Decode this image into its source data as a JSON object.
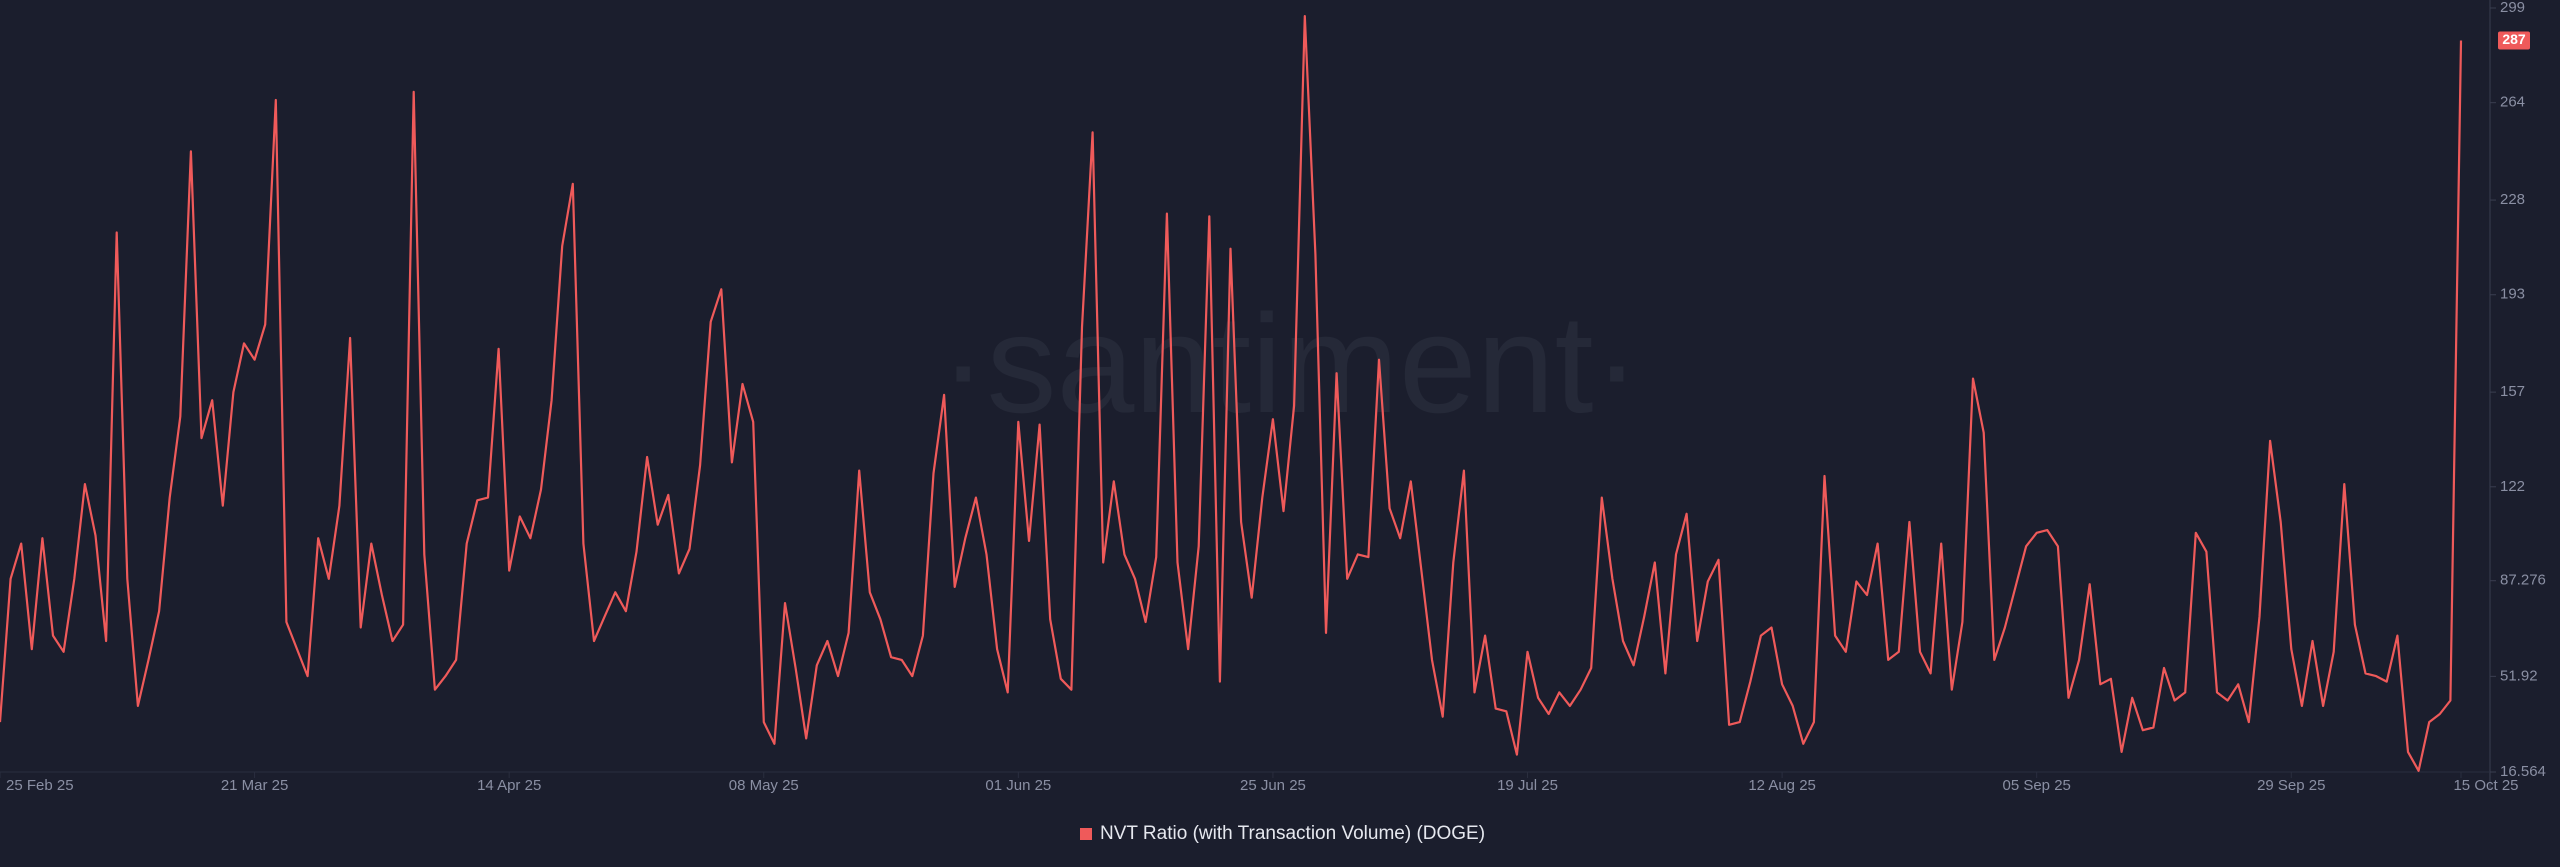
{
  "chart_data": {
    "type": "line",
    "watermark": "·santiment·",
    "xlim": [
      "2025-02-25",
      "2025-10-15"
    ],
    "xticks": [
      {
        "value": "2025-02-25",
        "label": "25 Feb 25"
      },
      {
        "value": "2025-03-21",
        "label": "21 Mar 25"
      },
      {
        "value": "2025-04-14",
        "label": "14 Apr 25"
      },
      {
        "value": "2025-05-08",
        "label": "08 May 25"
      },
      {
        "value": "2025-06-01",
        "label": "01 Jun 25"
      },
      {
        "value": "2025-06-25",
        "label": "25 Jun 25"
      },
      {
        "value": "2025-07-19",
        "label": "19 Jul 25"
      },
      {
        "value": "2025-08-12",
        "label": "12 Aug 25"
      },
      {
        "value": "2025-09-05",
        "label": "05 Sep 25"
      },
      {
        "value": "2025-09-29",
        "label": "29 Sep 25"
      },
      {
        "value": "2025-10-15",
        "label": "15 Oct 25"
      }
    ],
    "ylim": [
      16.564,
      299
    ],
    "yticks": [
      16.564,
      51.92,
      87.276,
      122,
      157,
      193,
      228,
      264,
      299
    ],
    "legend": "bottom",
    "x": [
      "2025-02-25",
      "2025-02-26",
      "2025-02-27",
      "2025-02-28",
      "2025-03-01",
      "2025-03-02",
      "2025-03-03",
      "2025-03-04",
      "2025-03-05",
      "2025-03-06",
      "2025-03-07",
      "2025-03-08",
      "2025-03-09",
      "2025-03-10",
      "2025-03-11",
      "2025-03-12",
      "2025-03-13",
      "2025-03-14",
      "2025-03-15",
      "2025-03-16",
      "2025-03-17",
      "2025-03-18",
      "2025-03-19",
      "2025-03-20",
      "2025-03-21",
      "2025-03-22",
      "2025-03-23",
      "2025-03-24",
      "2025-03-25",
      "2025-03-26",
      "2025-03-27",
      "2025-03-28",
      "2025-03-29",
      "2025-03-30",
      "2025-03-31",
      "2025-04-01",
      "2025-04-02",
      "2025-04-03",
      "2025-04-04",
      "2025-04-05",
      "2025-04-06",
      "2025-04-07",
      "2025-04-08",
      "2025-04-09",
      "2025-04-10",
      "2025-04-11",
      "2025-04-12",
      "2025-04-13",
      "2025-04-14",
      "2025-04-15",
      "2025-04-16",
      "2025-04-17",
      "2025-04-18",
      "2025-04-19",
      "2025-04-20",
      "2025-04-21",
      "2025-04-22",
      "2025-04-23",
      "2025-04-24",
      "2025-04-25",
      "2025-04-26",
      "2025-04-27",
      "2025-04-28",
      "2025-04-29",
      "2025-04-30",
      "2025-05-01",
      "2025-05-02",
      "2025-05-03",
      "2025-05-04",
      "2025-05-05",
      "2025-05-06",
      "2025-05-07",
      "2025-05-08",
      "2025-05-09",
      "2025-05-10",
      "2025-05-11",
      "2025-05-12",
      "2025-05-13",
      "2025-05-14",
      "2025-05-15",
      "2025-05-16",
      "2025-05-17",
      "2025-05-18",
      "2025-05-19",
      "2025-05-20",
      "2025-05-21",
      "2025-05-22",
      "2025-05-23",
      "2025-05-24",
      "2025-05-25",
      "2025-05-26",
      "2025-05-27",
      "2025-05-28",
      "2025-05-29",
      "2025-05-30",
      "2025-05-31",
      "2025-06-01",
      "2025-06-02",
      "2025-06-03",
      "2025-06-04",
      "2025-06-05",
      "2025-06-06",
      "2025-06-07",
      "2025-06-08",
      "2025-06-09",
      "2025-06-10",
      "2025-06-11",
      "2025-06-12",
      "2025-06-13",
      "2025-06-14",
      "2025-06-15",
      "2025-06-16",
      "2025-06-17",
      "2025-06-18",
      "2025-06-19",
      "2025-06-20",
      "2025-06-21",
      "2025-06-22",
      "2025-06-23",
      "2025-06-24",
      "2025-06-25",
      "2025-06-26",
      "2025-06-27",
      "2025-06-28",
      "2025-06-29",
      "2025-06-30",
      "2025-07-01",
      "2025-07-02",
      "2025-07-03",
      "2025-07-04",
      "2025-07-05",
      "2025-07-06",
      "2025-07-07",
      "2025-07-08",
      "2025-07-09",
      "2025-07-10",
      "2025-07-11",
      "2025-07-12",
      "2025-07-13",
      "2025-07-14",
      "2025-07-15",
      "2025-07-16",
      "2025-07-17",
      "2025-07-18",
      "2025-07-19",
      "2025-07-20",
      "2025-07-21",
      "2025-07-22",
      "2025-07-23",
      "2025-07-24",
      "2025-07-25",
      "2025-07-26",
      "2025-07-27",
      "2025-07-28",
      "2025-07-29",
      "2025-07-30",
      "2025-07-31",
      "2025-08-01",
      "2025-08-02",
      "2025-08-03",
      "2025-08-04",
      "2025-08-05",
      "2025-08-06",
      "2025-08-07",
      "2025-08-08",
      "2025-08-09",
      "2025-08-10",
      "2025-08-11",
      "2025-08-12",
      "2025-08-13",
      "2025-08-14",
      "2025-08-15",
      "2025-08-16",
      "2025-08-17",
      "2025-08-18",
      "2025-08-19",
      "2025-08-20",
      "2025-08-21",
      "2025-08-22",
      "2025-08-23",
      "2025-08-24",
      "2025-08-25",
      "2025-08-26",
      "2025-08-27",
      "2025-08-28",
      "2025-08-29",
      "2025-08-30",
      "2025-08-31",
      "2025-09-01",
      "2025-09-02",
      "2025-09-03",
      "2025-09-04",
      "2025-09-05",
      "2025-09-06",
      "2025-09-07",
      "2025-09-08",
      "2025-09-09",
      "2025-09-10",
      "2025-09-11",
      "2025-09-12",
      "2025-09-13",
      "2025-09-14",
      "2025-09-15",
      "2025-09-16",
      "2025-09-17",
      "2025-09-18",
      "2025-09-19",
      "2025-09-20",
      "2025-09-21",
      "2025-09-22",
      "2025-09-23",
      "2025-09-24",
      "2025-09-25",
      "2025-09-26",
      "2025-09-27",
      "2025-09-28",
      "2025-09-29",
      "2025-09-30",
      "2025-10-01",
      "2025-10-02",
      "2025-10-03",
      "2025-10-04",
      "2025-10-05",
      "2025-10-06",
      "2025-10-07",
      "2025-10-08",
      "2025-10-09",
      "2025-10-10",
      "2025-10-11",
      "2025-10-12",
      "2025-10-13",
      "2025-10-14",
      "2025-10-15"
    ],
    "series": [
      {
        "name": "NVT Ratio (with Transaction Volume) (DOGE)",
        "color": "#ef5a5a",
        "values": [
          35,
          88,
          101,
          62,
          103,
          67,
          61,
          88,
          123,
          104,
          65,
          216,
          88,
          41,
          58,
          76,
          118,
          148,
          246,
          140,
          154,
          115,
          157,
          175,
          169,
          182,
          265,
          72,
          62,
          52,
          103,
          88,
          115,
          177,
          70,
          101,
          82,
          65,
          71,
          268,
          97,
          47,
          52,
          58,
          101,
          117,
          118,
          173,
          91,
          111,
          103,
          121,
          154,
          211,
          234,
          101,
          65,
          74,
          83,
          76,
          98,
          133,
          108,
          119,
          90,
          99,
          130,
          183,
          195,
          131,
          160,
          146,
          35,
          27,
          79,
          55,
          29,
          56,
          65,
          52,
          68,
          128,
          83,
          73,
          59,
          58,
          52,
          67,
          127,
          156,
          85,
          103,
          118,
          97,
          62,
          46,
          146,
          102,
          145,
          73,
          51,
          47,
          181,
          253,
          94,
          124,
          97,
          88,
          72,
          96,
          223,
          94,
          62,
          100,
          222,
          50,
          210,
          109,
          81,
          118,
          147,
          113,
          152,
          296,
          208,
          68,
          164,
          88,
          97,
          96,
          169,
          114,
          103,
          124,
          91,
          58,
          37,
          94,
          128,
          46,
          67,
          40,
          39,
          23,
          61,
          44,
          38,
          46,
          41,
          47,
          55,
          118,
          88,
          65,
          56,
          74,
          94,
          53,
          97,
          112,
          65,
          87,
          95,
          34,
          35,
          50,
          67,
          70,
          49,
          41,
          27,
          35,
          126,
          67,
          61,
          87,
          82,
          101,
          58,
          61,
          109,
          61,
          53,
          101,
          47,
          72,
          162,
          142,
          58,
          70,
          85,
          100,
          105,
          106,
          100,
          44,
          58,
          86,
          49,
          51,
          24,
          44,
          32,
          33,
          55,
          43,
          46,
          105,
          98,
          46,
          43,
          49,
          35,
          74,
          139,
          109,
          62,
          41,
          65,
          41,
          61,
          123,
          71,
          53,
          52,
          50,
          67,
          24,
          17,
          35,
          38,
          43,
          287
        ]
      }
    ]
  }
}
